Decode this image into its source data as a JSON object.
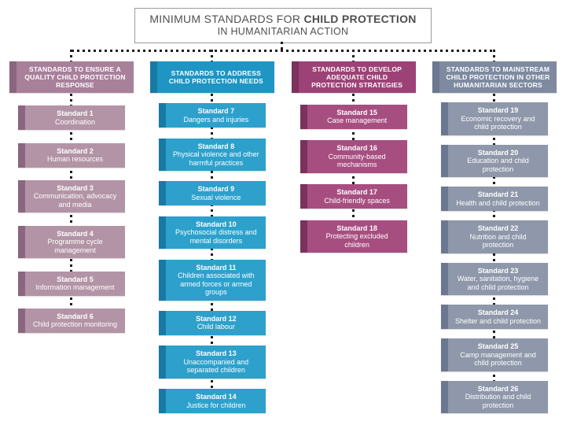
{
  "title": {
    "line1_prefix": "MINIMUM STANDARDS FOR ",
    "line1_bold": "CHILD PROTECTION",
    "line2": "IN HUMANITARIAN ACTION"
  },
  "connector_color": "#1c1c1c",
  "columns": [
    {
      "header": "STANDARDS TO ENSURE A QUALITY CHILD PROTECTION RESPONSE",
      "colors": {
        "header": "#a8809a",
        "main": "#b394a6",
        "dark": "#8a667f"
      },
      "items": [
        {
          "label": "Standard 1",
          "text": "Coordination"
        },
        {
          "label": "Standard 2",
          "text": "Human resources"
        },
        {
          "label": "Standard 3",
          "text": "Communication, advocacy and media"
        },
        {
          "label": "Standard 4",
          "text": "Programme cycle management"
        },
        {
          "label": "Standard 5",
          "text": "Information management"
        },
        {
          "label": "Standard 6",
          "text": "Child protection monitoring"
        }
      ]
    },
    {
      "header": "STANDARDS TO ADDRESS CHILD PROTECTION NEEDS",
      "colors": {
        "header": "#1e95c3",
        "main": "#2da1cc",
        "dark": "#187aa4"
      },
      "items": [
        {
          "label": "Standard 7",
          "text": "Dangers and injuries"
        },
        {
          "label": "Standard 8",
          "text": "Physical violence and other harmful practices"
        },
        {
          "label": "Standard 9",
          "text": "Sexual violence"
        },
        {
          "label": "Standard 10",
          "text": "Psychosocial distress and mental disorders"
        },
        {
          "label": "Standard 11",
          "text": "Children associated with armed forces or armed groups"
        },
        {
          "label": "Standard 12",
          "text": "Child labour"
        },
        {
          "label": "Standard 13",
          "text": "Unaccompanied and separated children"
        },
        {
          "label": "Standard 14",
          "text": "Justice for children"
        }
      ]
    },
    {
      "header": "STANDARDS TO DEVELOP ADEQUATE CHILD PROTECTION STRATEGIES",
      "colors": {
        "header": "#9c4276",
        "main": "#a74e81",
        "dark": "#7a335c"
      },
      "items": [
        {
          "label": "Standard 15",
          "text": "Case management"
        },
        {
          "label": "Standard 16",
          "text": "Community-based mechanisms"
        },
        {
          "label": "Standard 17",
          "text": "Child-friendly spaces"
        },
        {
          "label": "Standard 18",
          "text": "Protecting excluded children"
        }
      ]
    },
    {
      "header": "STANDARDS TO MAINSTREAM CHILD PROTECTION IN OTHER HUMANITARIAN SECTORS",
      "colors": {
        "header": "#7e8aa0",
        "main": "#8e98aa",
        "dark": "#6c7890"
      },
      "items": [
        {
          "label": "Standard 19",
          "text": "Economic recovery and child protection"
        },
        {
          "label": "Standard 20",
          "text": "Education and child protection"
        },
        {
          "label": "Standard 21",
          "text": "Health and child protection"
        },
        {
          "label": "Standard 22",
          "text": "Nutrition and child protection"
        },
        {
          "label": "Standard 23",
          "text": "Water, sanitation, hygiene and child protection"
        },
        {
          "label": "Standard 24",
          "text": "Shelter and child protection"
        },
        {
          "label": "Standard 25",
          "text": "Camp management and child protection"
        },
        {
          "label": "Standard 26",
          "text": "Distribution and child protection"
        }
      ]
    }
  ]
}
